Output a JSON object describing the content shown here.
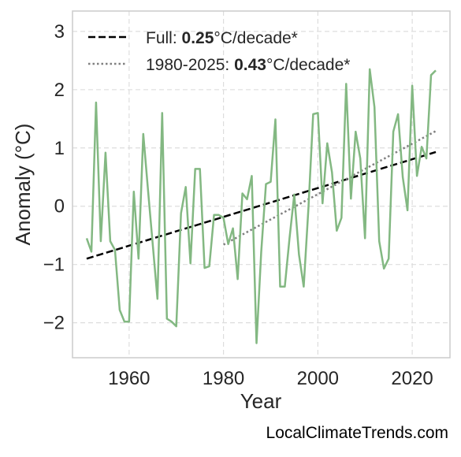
{
  "chart_data": {
    "type": "line",
    "xlabel": "Year",
    "ylabel": "Anomaly (°C)",
    "xlim": [
      1948,
      2028
    ],
    "ylim": [
      -2.6,
      3.35
    ],
    "xticks": [
      1960,
      1980,
      2000,
      2020
    ],
    "xtick_labels": [
      "1960",
      "1980",
      "2000",
      "2020"
    ],
    "yticks": [
      3,
      2,
      1,
      0,
      -1,
      -2
    ],
    "ytick_labels": [
      "3",
      "2",
      "1",
      "0",
      "−1",
      "−2"
    ],
    "grid": true,
    "legend_position": "top-left",
    "colors": {
      "series": "#83b882",
      "full_trend": "#000000",
      "recent_trend": "#808080",
      "grid": "#dddddd",
      "frame": "#cccccc"
    },
    "series": [
      {
        "name": "",
        "x": [
          1951,
          1952,
          1953,
          1954,
          1955,
          1956,
          1957,
          1958,
          1959,
          1960,
          1961,
          1962,
          1963,
          1964,
          1965,
          1966,
          1967,
          1968,
          1969,
          1970,
          1971,
          1972,
          1973,
          1974,
          1975,
          1976,
          1977,
          1978,
          1979,
          1980,
          1981,
          1982,
          1983,
          1984,
          1985,
          1986,
          1987,
          1988,
          1989,
          1990,
          1991,
          1992,
          1993,
          1994,
          1995,
          1996,
          1997,
          1998,
          1999,
          2000,
          2001,
          2002,
          2003,
          2004,
          2005,
          2006,
          2007,
          2008,
          2009,
          2010,
          2011,
          2012,
          2013,
          2014,
          2015,
          2016,
          2017,
          2018,
          2019,
          2020,
          2021,
          2022,
          2023,
          2024,
          2025
        ],
        "y": [
          -0.55,
          -0.78,
          1.78,
          -0.6,
          0.92,
          -0.6,
          -0.75,
          -1.78,
          -1.98,
          -1.98,
          0.25,
          -0.9,
          1.24,
          0.28,
          -0.65,
          -1.59,
          1.6,
          -1.93,
          -1.98,
          -2.06,
          -0.12,
          0.33,
          -0.98,
          0.64,
          0.64,
          -1.06,
          -1.03,
          -0.15,
          -0.15,
          -0.2,
          -0.65,
          -0.38,
          -1.25,
          0.22,
          0.12,
          0.52,
          -2.35,
          -0.78,
          0.38,
          0.42,
          1.49,
          -1.38,
          -1.38,
          -0.55,
          0.2,
          -0.83,
          -1.38,
          -0.03,
          1.58,
          1.6,
          0.05,
          1.08,
          0.58,
          -0.42,
          -0.2,
          2.1,
          0.13,
          1.28,
          0.82,
          -0.55,
          2.35,
          1.7,
          -0.6,
          -1.07,
          -0.9,
          1.28,
          1.58,
          0.5,
          -0.07,
          2.07,
          0.52,
          1.02,
          0.82,
          2.25,
          2.33
        ]
      }
    ],
    "trend_lines": [
      {
        "label_prefix": "Full: ",
        "rate": "0.25",
        "label_suffix": "°C/decade*",
        "x": [
          1951,
          2025
        ],
        "y": [
          -0.9,
          0.93
        ],
        "style": "dashed"
      },
      {
        "label_prefix": "1980-2025: ",
        "rate": "0.43",
        "label_suffix": "°C/decade*",
        "x": [
          1980,
          2025
        ],
        "y": [
          -0.66,
          1.29
        ],
        "style": "dotted"
      }
    ]
  },
  "footer": {
    "watermark": "LocalClimateTrends.com"
  }
}
